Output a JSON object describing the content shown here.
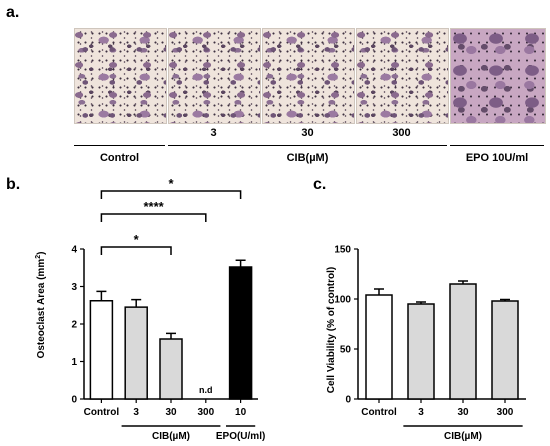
{
  "panel_letters": {
    "a": "a.",
    "b": "b.",
    "c": "c."
  },
  "panel_a": {
    "images": [
      {
        "label": "",
        "dense": false
      },
      {
        "label": "3",
        "dense": false
      },
      {
        "label": "30",
        "dense": false
      },
      {
        "label": "300",
        "dense": false
      },
      {
        "label": "",
        "dense": true
      }
    ],
    "groups": {
      "control": "Control",
      "cib": "CIB(µM)",
      "epo": "EPO 10U/ml"
    }
  },
  "chart_data": [
    {
      "type": "bar",
      "ylabel": "Osteoclast Area (mm²)",
      "ylabel_main": "Osteoclast Area (mm",
      "ylabel_sup": "2",
      "ylabel_end": ")",
      "ylim": [
        0,
        4
      ],
      "yticks": [
        "0",
        "1",
        "2",
        "3",
        "4"
      ],
      "categories": [
        "Control",
        "3",
        "30",
        "300",
        "10"
      ],
      "values": [
        2.62,
        2.45,
        1.6,
        0,
        3.52
      ],
      "errors": [
        0.25,
        0.2,
        0.15,
        0,
        0.18
      ],
      "colors": [
        "#ffffff",
        "#d9d9d9",
        "#d9d9d9",
        "#d9d9d9",
        "#000000"
      ],
      "annotations": [
        {
          "index": 3,
          "text": "n.d"
        }
      ],
      "significance": [
        {
          "from": 0,
          "to": 4,
          "text": "*"
        },
        {
          "from": 0,
          "to": 3,
          "text": "****"
        },
        {
          "from": 0,
          "to": 2,
          "text": "*"
        }
      ],
      "group_labels": [
        {
          "from": 1,
          "to": 3,
          "text": "CIB(µM)"
        },
        {
          "from": 4,
          "to": 4,
          "text": "EPO(U/ml)"
        }
      ]
    },
    {
      "type": "bar",
      "ylabel": "Cell Viability (% of control)",
      "ylim": [
        0,
        150
      ],
      "yticks": [
        "0",
        "50",
        "100",
        "150"
      ],
      "categories": [
        "Control",
        "3",
        "30",
        "300"
      ],
      "values": [
        104,
        95,
        115,
        98
      ],
      "errors": [
        6,
        2,
        3,
        1.5
      ],
      "colors": [
        "#ffffff",
        "#d9d9d9",
        "#d9d9d9",
        "#d9d9d9"
      ],
      "group_labels": [
        {
          "from": 1,
          "to": 3,
          "text": "CIB(µM)"
        }
      ]
    }
  ]
}
